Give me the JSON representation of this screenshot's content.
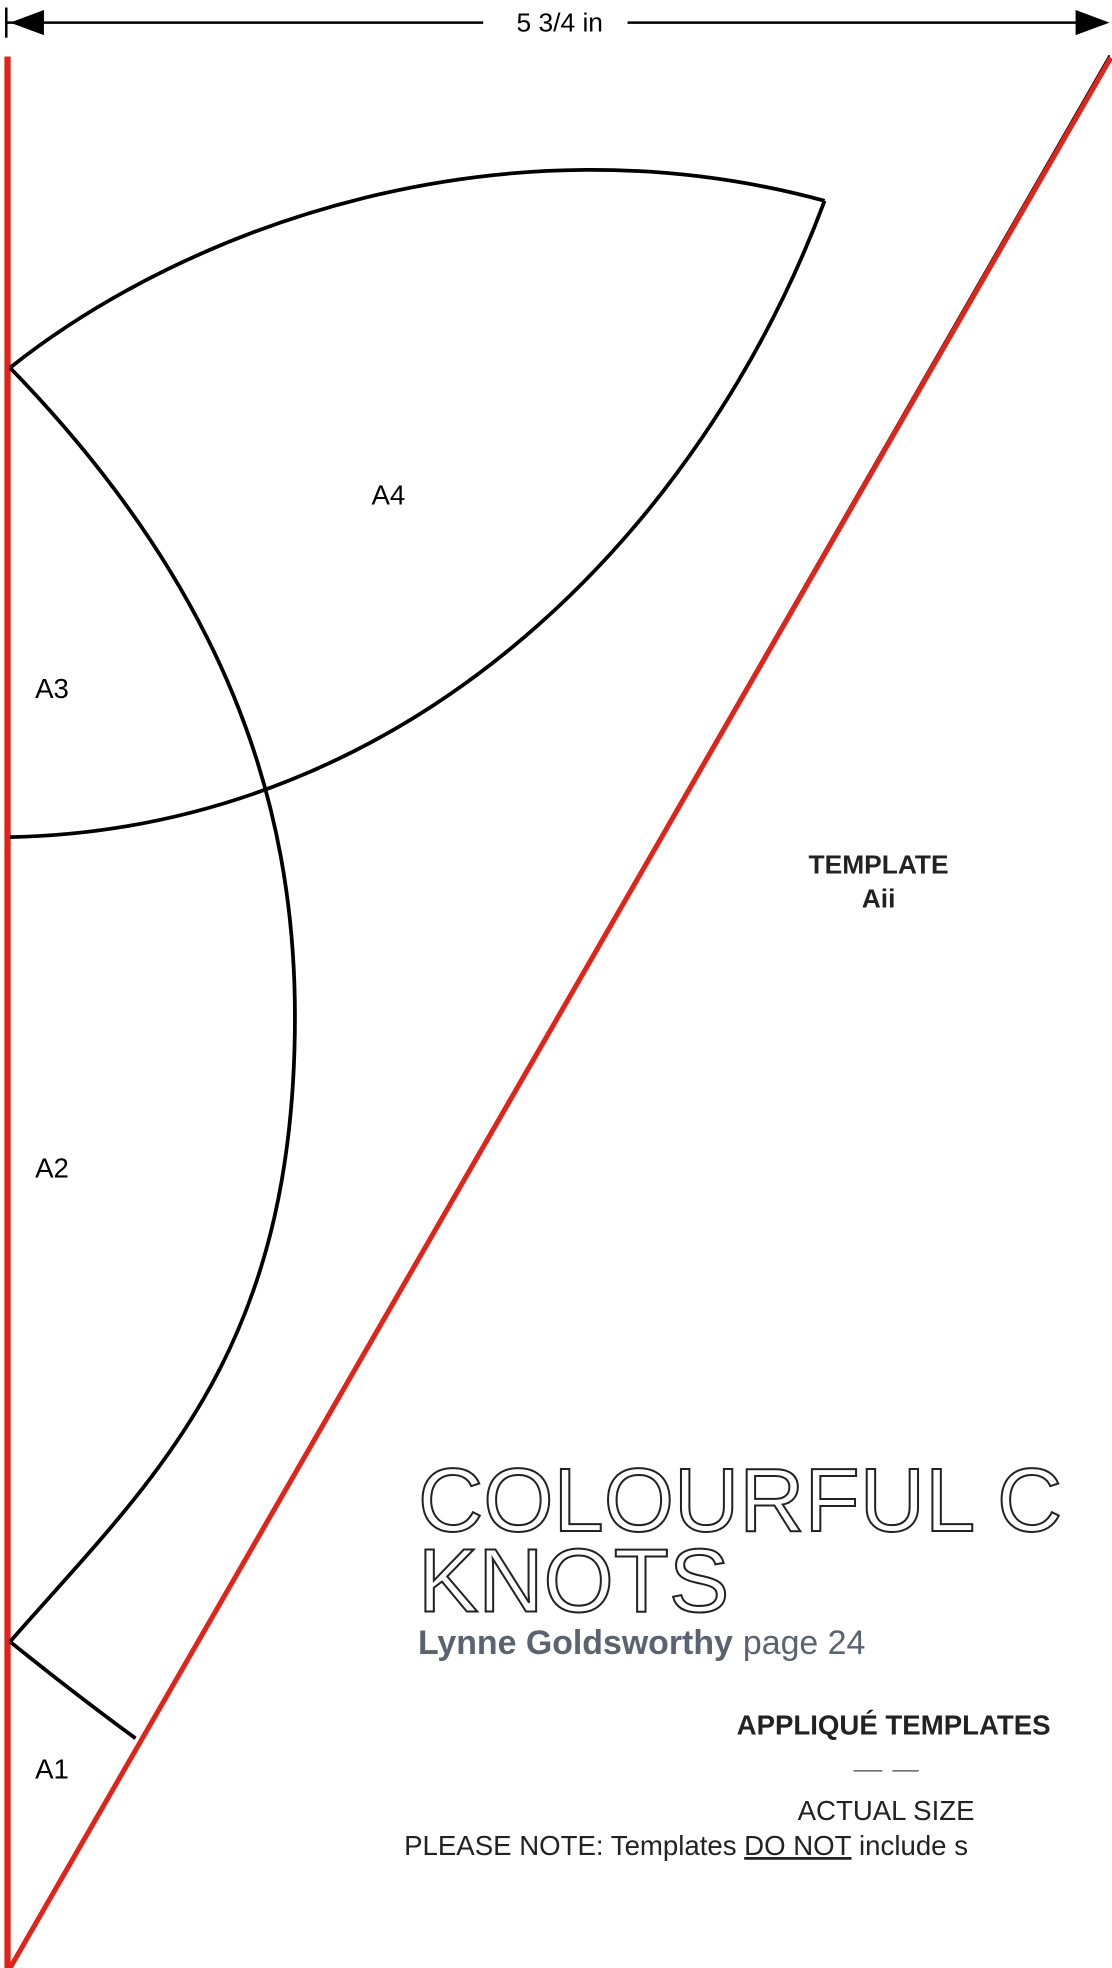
{
  "dimension": "5 3/4 in",
  "pieces": [
    "A4",
    "A3",
    "A2",
    "A1"
  ],
  "template": {
    "title": "TEMPLATE",
    "name": "Aii"
  },
  "project": {
    "title_line1": "COLOURFUL C",
    "title_line2": "KNOTS",
    "author": "Lynne Goldsworthy",
    "page": "page 24"
  },
  "section": {
    "heading": "APPLIQUÉ TEMPLATES",
    "size": "ACTUAL SIZE",
    "note": {
      "before": "PLEASE NOTE: Templates",
      "emphasis": "DO NOT",
      "after": "include s"
    }
  }
}
